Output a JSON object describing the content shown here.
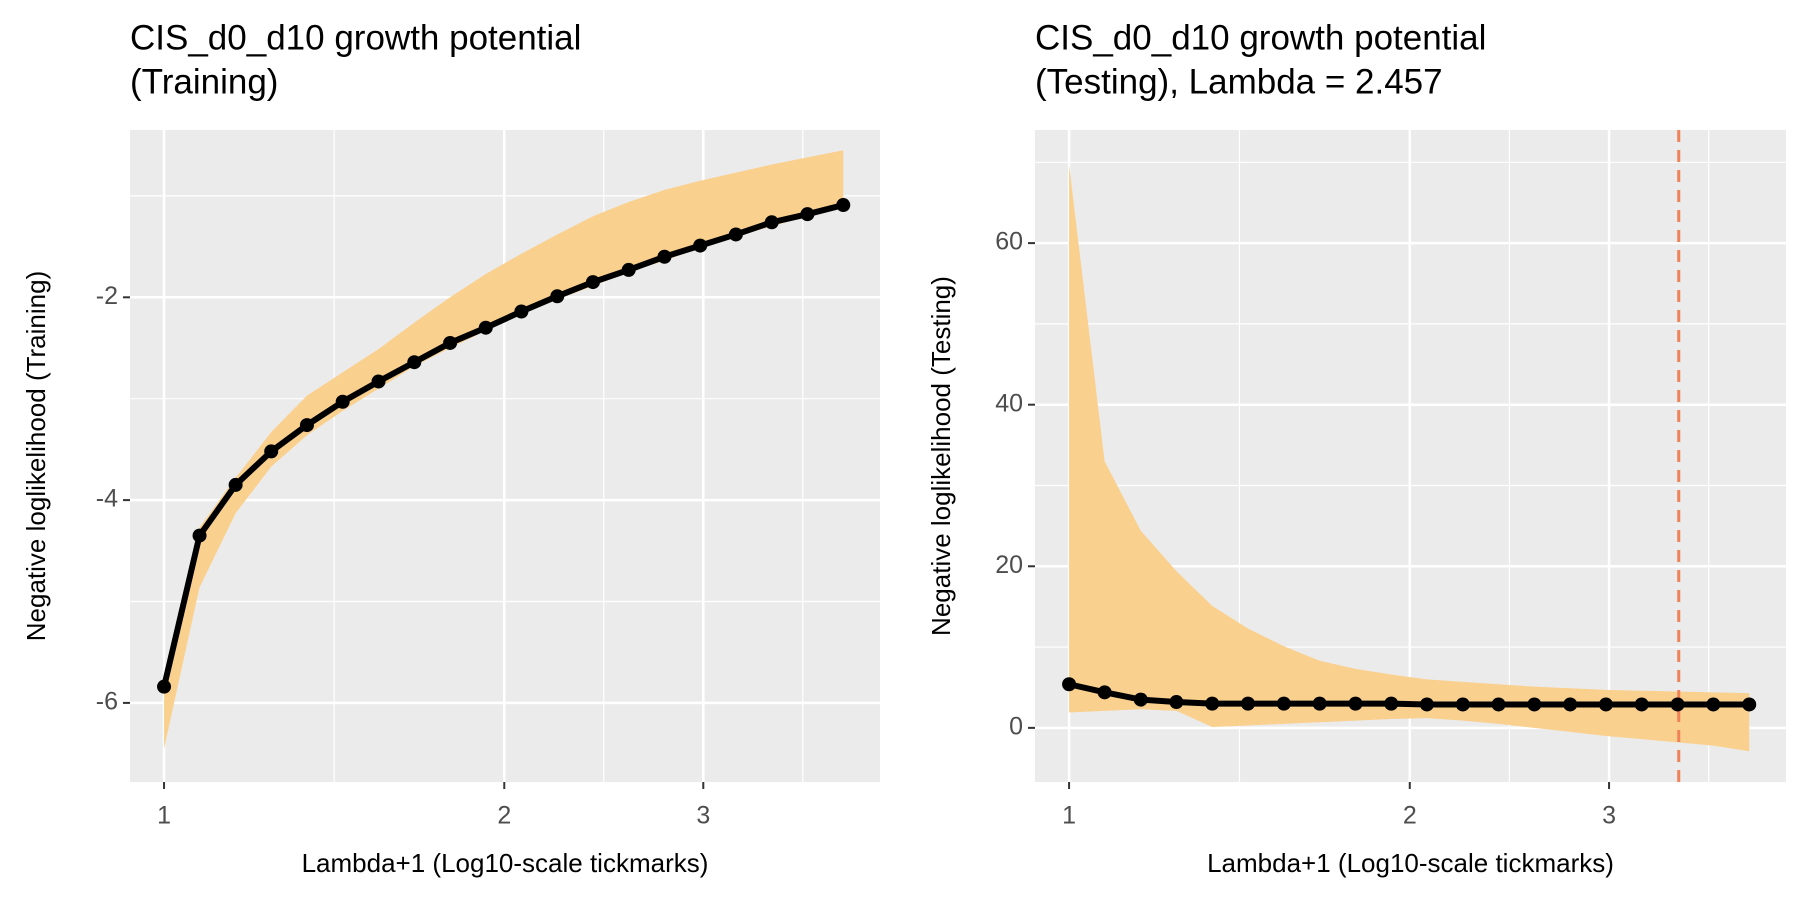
{
  "chart_data": [
    {
      "type": "line",
      "title": [
        "CIS_d0_d10 growth potential",
        "(Training)"
      ],
      "x_label": "Lambda+1 (Log10-scale tickmarks)",
      "y_label": "Negative loglikelihood (Training)",
      "log_x": true,
      "grid": true,
      "xlim": [
        0.933,
        4.3
      ],
      "xticks": [
        1,
        2,
        3
      ],
      "ylim": [
        -6.78,
        -0.35
      ],
      "yticks": [
        -6,
        -4,
        -2
      ],
      "x": [
        1,
        1.075,
        1.157,
        1.244,
        1.338,
        1.439,
        1.548,
        1.665,
        1.791,
        1.926,
        2.071,
        2.228,
        2.396,
        2.577,
        2.772,
        2.981,
        3.206,
        3.449,
        3.709,
        3.99
      ],
      "series": [
        {
          "color": "#000000",
          "values": [
            -5.84,
            -4.35,
            -3.85,
            -3.52,
            -3.26,
            -3.03,
            -2.83,
            -2.64,
            -2.45,
            -2.3,
            -2.14,
            -1.99,
            -1.85,
            -1.73,
            -1.6,
            -1.49,
            -1.38,
            -1.26,
            -1.18,
            -1.09
          ]
        }
      ],
      "band": {
        "color": "#FAD08E",
        "upper": [
          -5.84,
          -4.27,
          -3.78,
          -3.33,
          -2.97,
          -2.74,
          -2.51,
          -2.25,
          -2.0,
          -1.77,
          -1.57,
          -1.38,
          -1.2,
          -1.06,
          -0.94,
          -0.85,
          -0.77,
          -0.69,
          -0.62,
          -0.55
        ],
        "lower": [
          -6.45,
          -4.86,
          -4.13,
          -3.67,
          -3.36,
          -3.12,
          -2.9,
          -2.68,
          -2.5,
          -2.33,
          -2.17,
          -2.02,
          -1.89,
          -1.75,
          -1.64,
          -1.51,
          -1.4,
          -1.3,
          -1.2,
          -1.11
        ]
      }
    },
    {
      "type": "line",
      "title": [
        "CIS_d0_d10 growth potential",
        "(Testing), Lambda = 2.457"
      ],
      "x_label": "Lambda+1 (Log10-scale tickmarks)",
      "y_label": "Negative loglikelihood (Testing)",
      "log_x": true,
      "grid": true,
      "xlim": [
        0.933,
        4.3
      ],
      "xticks": [
        1,
        2,
        3
      ],
      "ylim": [
        -6.7,
        74
      ],
      "yticks": [
        0,
        20,
        40,
        60
      ],
      "x": [
        1,
        1.075,
        1.157,
        1.244,
        1.338,
        1.439,
        1.548,
        1.665,
        1.791,
        1.926,
        2.071,
        2.228,
        2.396,
        2.577,
        2.772,
        2.981,
        3.206,
        3.449,
        3.709,
        3.99
      ],
      "series": [
        {
          "color": "#000000",
          "values": [
            5.4,
            4.4,
            3.5,
            3.2,
            3.0,
            3.0,
            3.0,
            3.0,
            3.0,
            3.0,
            2.9,
            2.9,
            2.9,
            2.9,
            2.9,
            2.9,
            2.9,
            2.9,
            2.9,
            2.9
          ]
        }
      ],
      "band": {
        "color": "#FAD08E",
        "upper": [
          69.7,
          33,
          24.4,
          19.4,
          15.1,
          12.3,
          10.1,
          8.3,
          7.3,
          6.6,
          6.0,
          5.7,
          5.4,
          5.1,
          4.9,
          4.7,
          4.6,
          4.5,
          4.4,
          4.3
        ],
        "lower": [
          1.9,
          2.1,
          2.3,
          2.1,
          0.1,
          0.3,
          0.5,
          0.7,
          0.9,
          1.1,
          1.2,
          0.9,
          0.5,
          0.0,
          -0.5,
          -1.0,
          -1.4,
          -1.8,
          -2.2,
          -2.9
        ]
      },
      "vline": {
        "x": 3.457,
        "color": "#F08159",
        "dashed": true
      }
    }
  ]
}
